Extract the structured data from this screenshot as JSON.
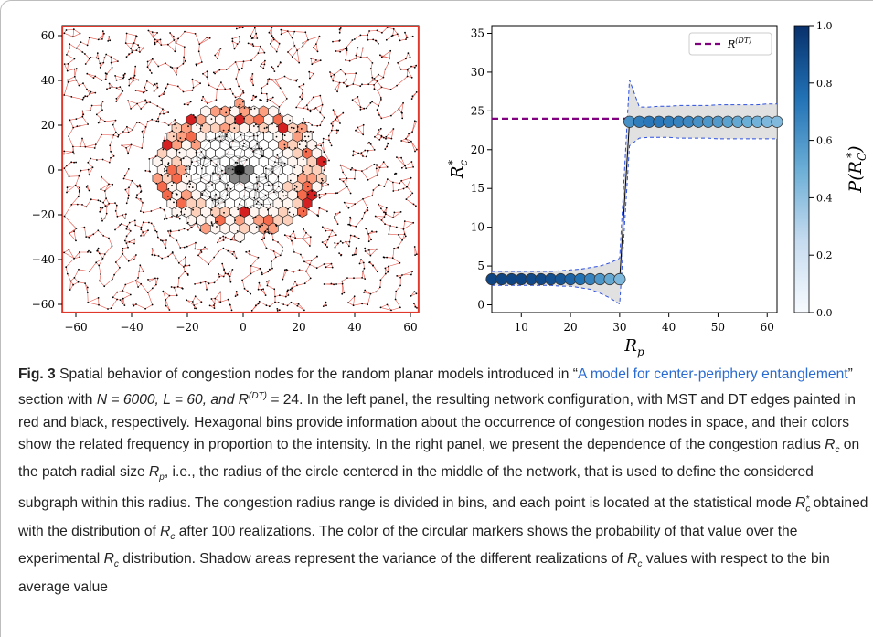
{
  "left_panel": {
    "x_ticks": [
      "−60",
      "−40",
      "−20",
      "0",
      "20",
      "40",
      "60"
    ],
    "y_ticks": [
      "60",
      "40",
      "20",
      "0",
      "−20",
      "−40",
      "−60"
    ],
    "edge_colors": {
      "mst": "#e0392b",
      "dt": "#111111"
    }
  },
  "chart_data": {
    "type": "scatter",
    "xlabel": "R_p",
    "ylabel": "R*_c",
    "xlim": [
      4,
      62
    ],
    "ylim": [
      -1,
      36
    ],
    "x_ticks": [
      "10",
      "20",
      "30",
      "40",
      "50",
      "60"
    ],
    "y_ticks": [
      "0",
      "5",
      "10",
      "15",
      "20",
      "25",
      "30",
      "35"
    ],
    "reference_line": {
      "label": "R^(DT)",
      "value": 24,
      "x_start": 4,
      "x_end": 32,
      "color": "#800080"
    },
    "series": [
      {
        "x": [
          4,
          6,
          8,
          10,
          12,
          14,
          16,
          18,
          20,
          22,
          24,
          26,
          28,
          30,
          32,
          34,
          36,
          38,
          40,
          42,
          44,
          46,
          48,
          50,
          52,
          54,
          56,
          58,
          60,
          62
        ],
        "y": [
          3.3,
          3.3,
          3.3,
          3.3,
          3.3,
          3.3,
          3.3,
          3.3,
          3.3,
          3.3,
          3.3,
          3.3,
          3.3,
          3.3,
          23.6,
          23.6,
          23.6,
          23.6,
          23.6,
          23.6,
          23.6,
          23.6,
          23.6,
          23.6,
          23.6,
          23.6,
          23.6,
          23.6,
          23.6,
          23.6
        ],
        "probability": [
          0.92,
          0.92,
          0.92,
          0.92,
          0.9,
          0.9,
          0.88,
          0.85,
          0.8,
          0.75,
          0.68,
          0.6,
          0.52,
          0.45,
          0.62,
          0.7,
          0.72,
          0.72,
          0.7,
          0.68,
          0.66,
          0.62,
          0.6,
          0.58,
          0.55,
          0.52,
          0.5,
          0.48,
          0.45,
          0.44
        ],
        "upper": [
          4.3,
          4.3,
          4.3,
          4.3,
          4.3,
          4.3,
          4.3,
          4.4,
          4.5,
          4.6,
          4.8,
          5.0,
          5.4,
          6.0,
          29.0,
          25.5,
          25.5,
          25.6,
          25.6,
          25.7,
          25.7,
          25.7,
          25.7,
          25.8,
          25.8,
          25.8,
          25.8,
          25.8,
          25.9,
          25.9
        ],
        "lower": [
          2.5,
          2.5,
          2.5,
          2.5,
          2.5,
          2.5,
          2.5,
          2.4,
          2.4,
          2.2,
          2.0,
          1.5,
          0.9,
          0.1,
          20.5,
          21.5,
          21.6,
          21.6,
          21.6,
          21.5,
          21.5,
          21.5,
          21.5,
          21.4,
          21.4,
          21.4,
          21.4,
          21.4,
          21.4,
          21.4
        ]
      }
    ],
    "colorbar": {
      "label": "P(R*_C)",
      "ticks": [
        "0.0",
        "0.2",
        "0.4",
        "0.6",
        "0.8",
        "1.0"
      ],
      "colormap": "Blues"
    }
  },
  "caption": {
    "figure_label": "Fig. 3",
    "t1": " Spatial behavior of congestion nodes for the random planar models introduced in “",
    "link": "A model for center-periphery entanglement",
    "t2": "” section with ",
    "t3": "N = 6000, L = 60, and R",
    "t3sup": "(DT)",
    "t4": " = 24. In the left panel, the resulting network configuration, with MST and DT edges painted in red and black, respectively. Hexagonal bins provide information about the occurrence of congestion nodes in space, and their colors show the related frequency in proportion to the intensity. In the right panel, we present the dependence of the congestion radius ",
    "rc1": "R",
    "rc1sub": "c",
    "t5": " on the patch radial size ",
    "rp": "R",
    "rpsub": "p",
    "t6": ", i.e., the radius of the circle centered in the middle of the network, that is used to define the considered subgraph within this radius. The congestion radius range is divided in bins, and each point is located at the statistical mode ",
    "rcs": "R",
    "rcssub": "c",
    "rcssup": "*",
    "t7": " obtained with the distribution of ",
    "rc2": "R",
    "rc2sub": "c",
    "t8": " after 100 realizations. The color of the circular markers shows the probability of that value over the experimental ",
    "rc3": "R",
    "rc3sub": "c",
    "t9": " distribution. Shadow areas represent the variance of the different realizations of ",
    "rc4": "R",
    "rc4sub": "c",
    "t10": " values with respect to the bin average value"
  }
}
